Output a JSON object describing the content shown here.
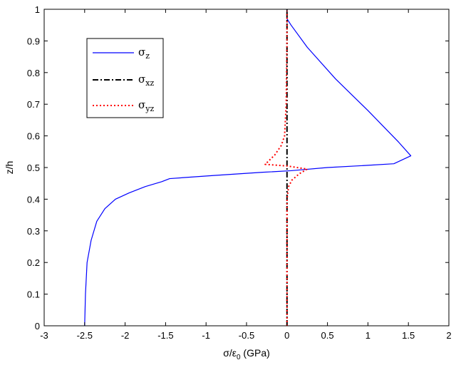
{
  "chart_data": {
    "type": "line",
    "title": "",
    "xlabel": "σ/ε",
    "xlabel_sub": "0",
    "xlabel_unit": " (GPa)",
    "ylabel": "z/h",
    "xlim": [
      -3,
      2
    ],
    "ylim": [
      0,
      1
    ],
    "xticks": [
      -3,
      -2.5,
      -2,
      -1.5,
      -1,
      -0.5,
      0,
      0.5,
      1,
      1.5,
      2
    ],
    "xtick_labels": [
      "-3",
      "-2.5",
      "-2",
      "-1.5",
      "-1",
      "-0.5",
      "0",
      "0.5",
      "1",
      "1.5",
      "2"
    ],
    "yticks": [
      0,
      0.1,
      0.2,
      0.3,
      0.4,
      0.5,
      0.6,
      0.7,
      0.8,
      0.9,
      1
    ],
    "ytick_labels": [
      "0",
      "0.1",
      "0.2",
      "0.3",
      "0.4",
      "0.5",
      "0.6",
      "0.7",
      "0.8",
      "0.9",
      "1"
    ],
    "grid": false,
    "legend_position": "top-left",
    "series": [
      {
        "name": "σ",
        "subscript": "z",
        "color": "#0000ff",
        "style": "solid",
        "x": [
          -2.5,
          -2.49,
          -2.47,
          -2.42,
          -2.35,
          -2.25,
          -2.12,
          -1.95,
          -1.75,
          -1.55,
          -1.45,
          -0.9,
          -0.3,
          0.05,
          0.5,
          1.0,
          1.32,
          1.53,
          1.38,
          1.0,
          0.6,
          0.25,
          0.05,
          0.0,
          0.0
        ],
        "y": [
          0,
          0.1,
          0.2,
          0.27,
          0.33,
          0.37,
          0.4,
          0.42,
          0.44,
          0.455,
          0.465,
          0.475,
          0.485,
          0.49,
          0.5,
          0.507,
          0.512,
          0.537,
          0.58,
          0.68,
          0.78,
          0.88,
          0.95,
          0.97,
          1.0
        ],
        "role": "sigma-z"
      },
      {
        "name": "σ",
        "subscript": "xz",
        "color": "#000000",
        "style": "dashdot",
        "x": [
          0,
          0
        ],
        "y": [
          0,
          1
        ],
        "role": "sigma-xz"
      },
      {
        "name": "σ",
        "subscript": "yz",
        "color": "#ff0000",
        "style": "dotted",
        "x": [
          0.0,
          0.0,
          0.02,
          0.06,
          0.15,
          0.25,
          0.0,
          -0.27,
          -0.15,
          -0.07,
          -0.03,
          -0.01,
          0.0,
          0.0
        ],
        "y": [
          0.0,
          0.4,
          0.44,
          0.46,
          0.48,
          0.495,
          0.505,
          0.51,
          0.54,
          0.57,
          0.6,
          0.7,
          0.9,
          1.0
        ],
        "role": "sigma-yz"
      }
    ]
  }
}
